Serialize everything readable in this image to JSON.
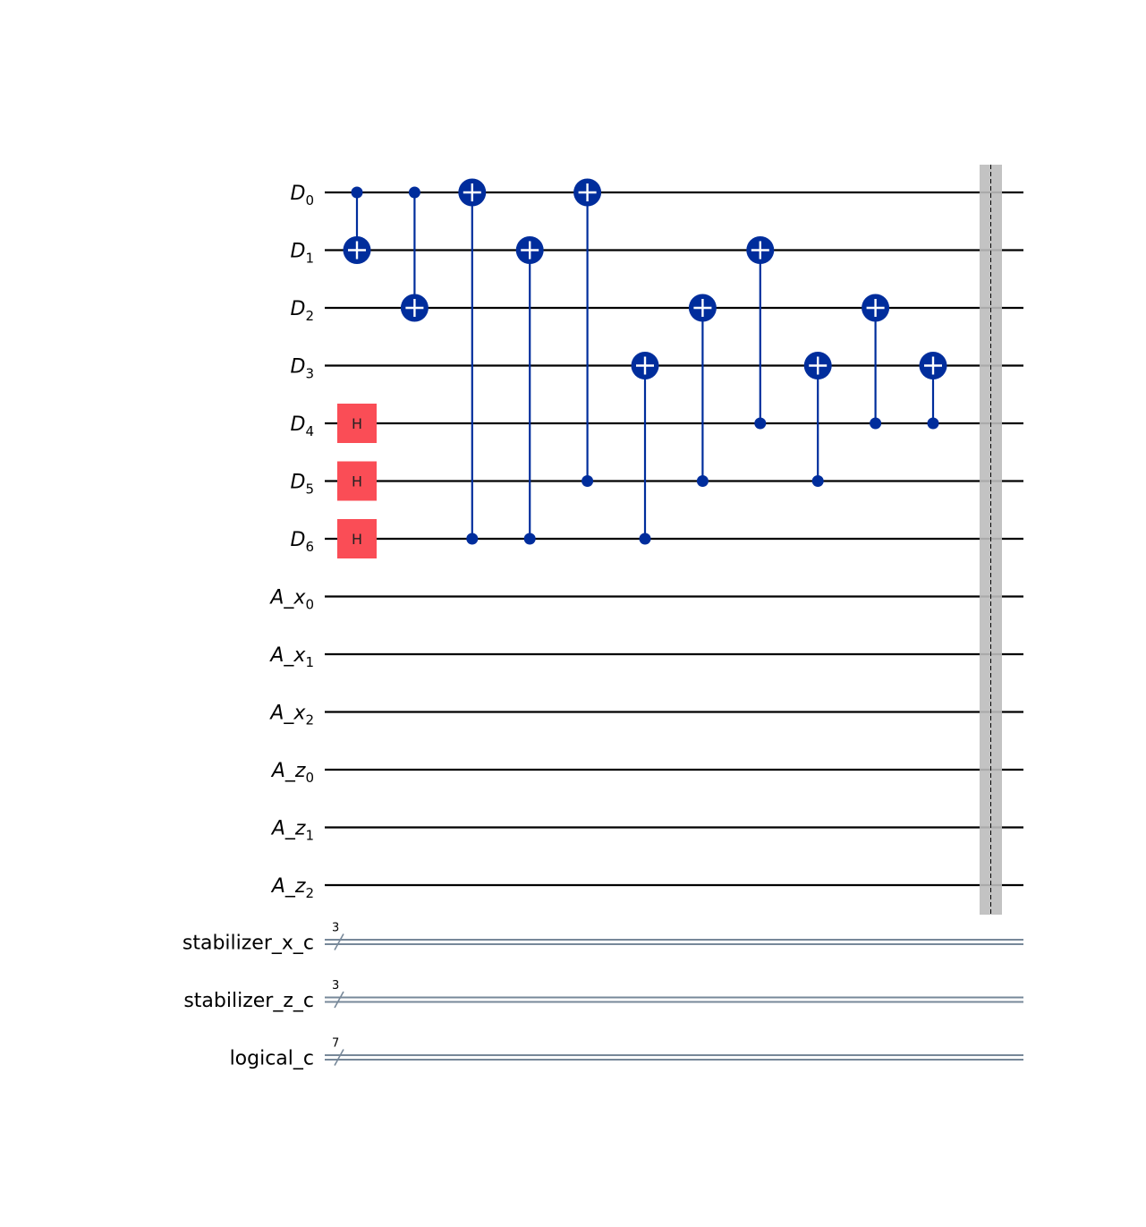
{
  "qubits": [
    {
      "base": "D",
      "sub": "0"
    },
    {
      "base": "D",
      "sub": "1"
    },
    {
      "base": "D",
      "sub": "2"
    },
    {
      "base": "D",
      "sub": "3"
    },
    {
      "base": "D",
      "sub": "4"
    },
    {
      "base": "D",
      "sub": "5"
    },
    {
      "base": "D",
      "sub": "6"
    },
    {
      "base": "A_x",
      "sub": "0"
    },
    {
      "base": "A_x",
      "sub": "1"
    },
    {
      "base": "A_x",
      "sub": "2"
    },
    {
      "base": "A_z",
      "sub": "0"
    },
    {
      "base": "A_z",
      "sub": "1"
    },
    {
      "base": "A_z",
      "sub": "2"
    }
  ],
  "classical_registers": [
    {
      "name": "stabilizer_x_c",
      "size": "3"
    },
    {
      "name": "stabilizer_z_c",
      "size": "3"
    },
    {
      "name": "logical_c",
      "size": "7"
    }
  ],
  "gates": [
    {
      "type": "h",
      "column": 0,
      "qubit": 4,
      "label": "H"
    },
    {
      "type": "h",
      "column": 0,
      "qubit": 5,
      "label": "H"
    },
    {
      "type": "h",
      "column": 0,
      "qubit": 6,
      "label": "H"
    },
    {
      "type": "cx",
      "column": 0,
      "control": 0,
      "target": 1
    },
    {
      "type": "cx",
      "column": 1,
      "control": 0,
      "target": 2
    },
    {
      "type": "cx",
      "column": 2,
      "control": 6,
      "target": 0
    },
    {
      "type": "cx",
      "column": 3,
      "control": 6,
      "target": 1
    },
    {
      "type": "cx",
      "column": 4,
      "control": 5,
      "target": 0
    },
    {
      "type": "cx",
      "column": 5,
      "control": 6,
      "target": 3
    },
    {
      "type": "cx",
      "column": 6,
      "control": 5,
      "target": 2
    },
    {
      "type": "cx",
      "column": 7,
      "control": 4,
      "target": 1
    },
    {
      "type": "cx",
      "column": 8,
      "control": 5,
      "target": 3
    },
    {
      "type": "cx",
      "column": 9,
      "control": 4,
      "target": 2
    },
    {
      "type": "cx",
      "column": 10,
      "control": 4,
      "target": 3
    }
  ],
  "barrier": {
    "present": true,
    "spans_qubits": [
      0,
      12
    ]
  },
  "colors": {
    "wire": "#000000",
    "classical_wire": "#778899",
    "cx": "#002D9C",
    "h_gate": "#FA4D56",
    "barrier": "#BDBDBD"
  }
}
